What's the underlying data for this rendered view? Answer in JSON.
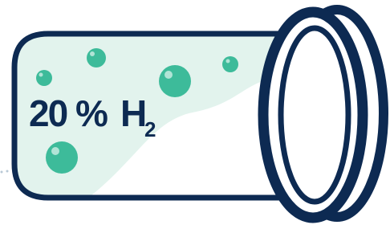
{
  "label": {
    "percent": "20 %",
    "element": "H",
    "subscript": "2"
  }
}
